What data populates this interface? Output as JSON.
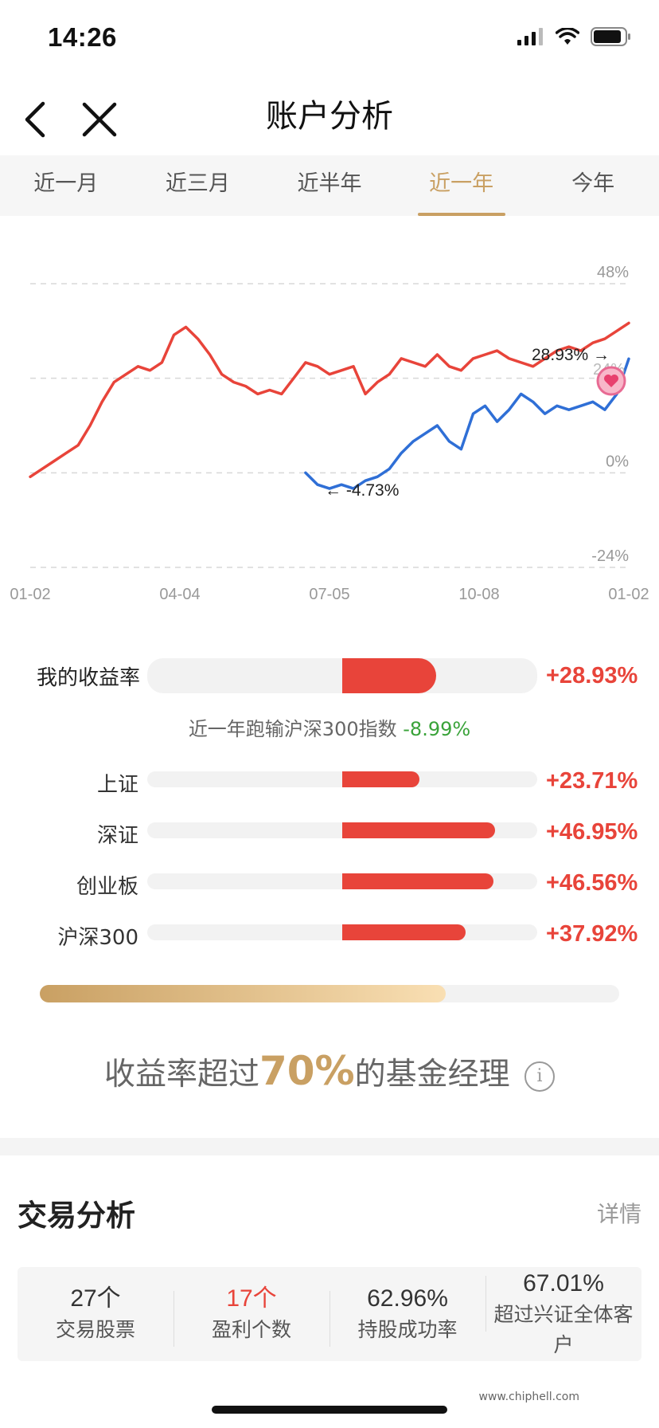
{
  "status": {
    "time": "14:26"
  },
  "nav": {
    "title": "账户分析"
  },
  "tabs": [
    {
      "label": "近一月",
      "active": false
    },
    {
      "label": "近三月",
      "active": false
    },
    {
      "label": "近半年",
      "active": false
    },
    {
      "label": "近一年",
      "active": true
    },
    {
      "label": "今年",
      "active": false
    }
  ],
  "chart_data": {
    "type": "line",
    "y_ticks": [
      "48%",
      "0%",
      "-24%"
    ],
    "x_ticks": [
      "01-02",
      "04-04",
      "07-05",
      "10-08",
      "01-02"
    ],
    "ylim": [
      -24,
      48
    ],
    "grid": "dashed horizontal",
    "series": [
      {
        "color": "#e8443a",
        "x": [
          0,
          2,
          4,
          6,
          8,
          10,
          12,
          14,
          16,
          18,
          20,
          22,
          24,
          26,
          28,
          30,
          32,
          34,
          36,
          38,
          40,
          42,
          44,
          46,
          48,
          50,
          52,
          54,
          56,
          58,
          60,
          62,
          64,
          66,
          68,
          70,
          72,
          74,
          76,
          78,
          80,
          82,
          84,
          86,
          88,
          90,
          92,
          94,
          96,
          98,
          100
        ],
        "y": [
          -1,
          1,
          3,
          5,
          7,
          12,
          18,
          23,
          25,
          27,
          26,
          28,
          35,
          37,
          34,
          30,
          25,
          23,
          22,
          20,
          21,
          20,
          24,
          28,
          27,
          25,
          26,
          27,
          20,
          23,
          25,
          29,
          28,
          27,
          30,
          27,
          26,
          29,
          30,
          31,
          29,
          28,
          27,
          29,
          31,
          32,
          31,
          33,
          34,
          36,
          38
        ]
      },
      {
        "color": "#2f6fd6",
        "x": [
          46,
          48,
          50,
          52,
          54,
          56,
          58,
          60,
          62,
          64,
          66,
          68,
          70,
          72,
          74,
          76,
          78,
          80,
          82,
          84,
          86,
          88,
          90,
          92,
          94,
          96,
          98,
          100
        ],
        "y": [
          0,
          -3,
          -4,
          -3,
          -4,
          -2,
          -1,
          1,
          5,
          8,
          10,
          12,
          8,
          6,
          15,
          17,
          13,
          16,
          20,
          18,
          15,
          17,
          16,
          17,
          18,
          16,
          20,
          28.93
        ]
      }
    ],
    "annotations": [
      {
        "text": "28.93%",
        "arrow": "right"
      },
      {
        "text": "-4.73%",
        "arrow": "left"
      }
    ],
    "marker_text": "24%"
  },
  "compare": {
    "main": {
      "label": "我的收益率",
      "value": "+28.93%",
      "pct": 28.93
    },
    "lag_text": "近一年跑输沪深300指数",
    "lag_value": "-8.99%",
    "rows": [
      {
        "label": "上证",
        "value": "+23.71%",
        "pct": 23.71
      },
      {
        "label": "深证",
        "value": "+46.95%",
        "pct": 46.95
      },
      {
        "label": "创业板",
        "value": "+46.56%",
        "pct": 46.56
      },
      {
        "label": "沪深300",
        "value": "+37.92%",
        "pct": 37.92
      }
    ],
    "bar_max_pct": 60
  },
  "beat": {
    "pre": "收益率超过",
    "pct": "70%",
    "post": "的基金经理",
    "fraction": 0.7,
    "info_icon": "i"
  },
  "trade": {
    "title": "交易分析",
    "detail": "详情",
    "stats": [
      {
        "value": "27个",
        "label": "交易股票",
        "red": false
      },
      {
        "value": "17个",
        "label": "盈利个数",
        "red": true
      },
      {
        "value": "62.96%",
        "label": "持股成功率",
        "red": false
      },
      {
        "value": "67.01%",
        "label": "超过兴证全体客户",
        "red": false
      }
    ]
  },
  "watermark": "www.chiphell.com"
}
